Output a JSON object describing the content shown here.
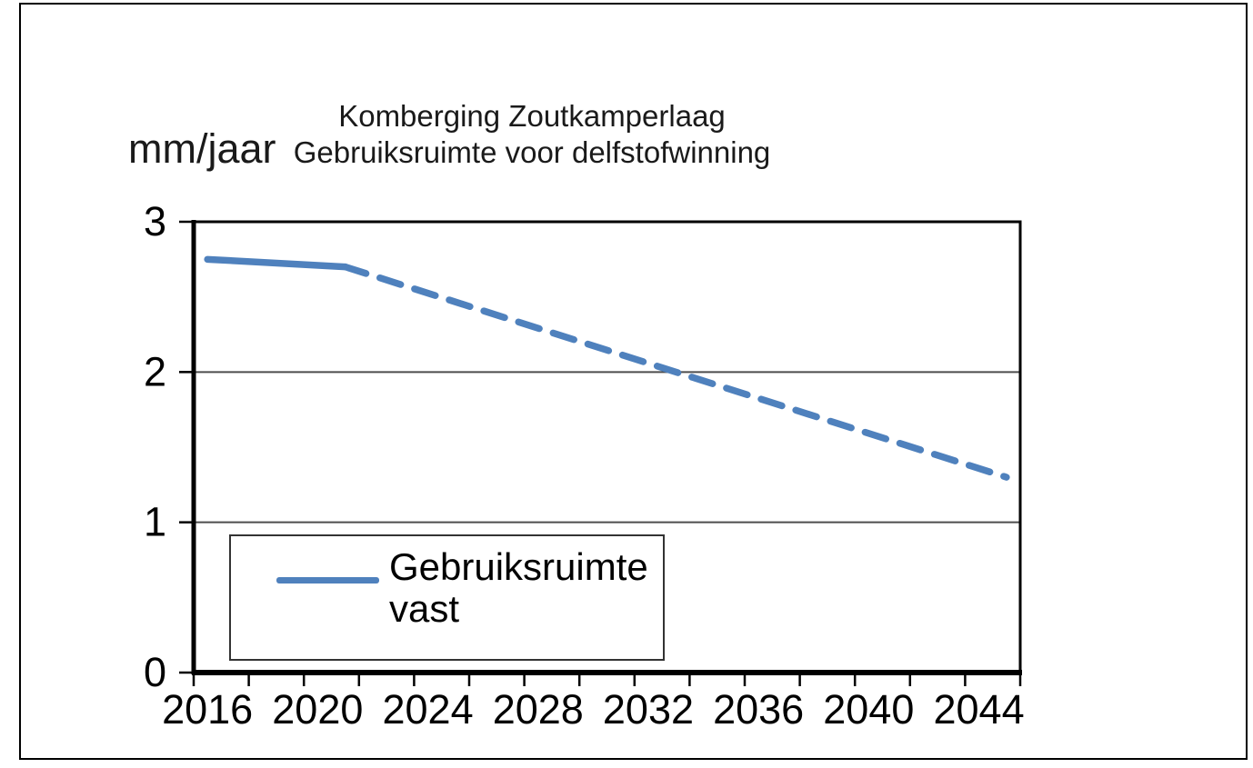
{
  "chart": {
    "title_line1": "Komberging Zoutkamperlaag",
    "title_line2": "Gebruiksruimte voor delfstofwinning",
    "y_unit_label": "mm/jaar",
    "legend": {
      "items": [
        {
          "label": "Gebruiksruimte vast",
          "color": "#4F81BD",
          "style": "solid"
        }
      ]
    }
  },
  "chart_data": {
    "type": "line",
    "title": "Komberging Zoutkamperlaag — Gebruiksruimte voor delfstofwinning",
    "ylabel": "mm/jaar",
    "xlabel": "",
    "ylim": [
      0,
      3
    ],
    "yticks": [
      0,
      1,
      2,
      3
    ],
    "gridlines_y": [
      1,
      2
    ],
    "xlim": [
      2015.5,
      2045.5
    ],
    "x_minor_tick_interval": 2,
    "xtick_labels": [
      "2016",
      "2020",
      "2024",
      "2028",
      "2032",
      "2036",
      "2040",
      "2044"
    ],
    "xtick_label_positions": [
      2016,
      2020,
      2024,
      2028,
      2032,
      2036,
      2040,
      2044
    ],
    "grid": "horizontal-only",
    "legend_position": "inside-bottom-left",
    "series": [
      {
        "name": "Gebruiksruimte vast",
        "color": "#4F81BD",
        "segments": [
          {
            "style": "solid",
            "points": [
              [
                2016,
                2.75
              ],
              [
                2021,
                2.7
              ]
            ]
          },
          {
            "style": "dashed",
            "points": [
              [
                2021,
                2.7
              ],
              [
                2045,
                1.3
              ]
            ]
          }
        ]
      }
    ]
  }
}
